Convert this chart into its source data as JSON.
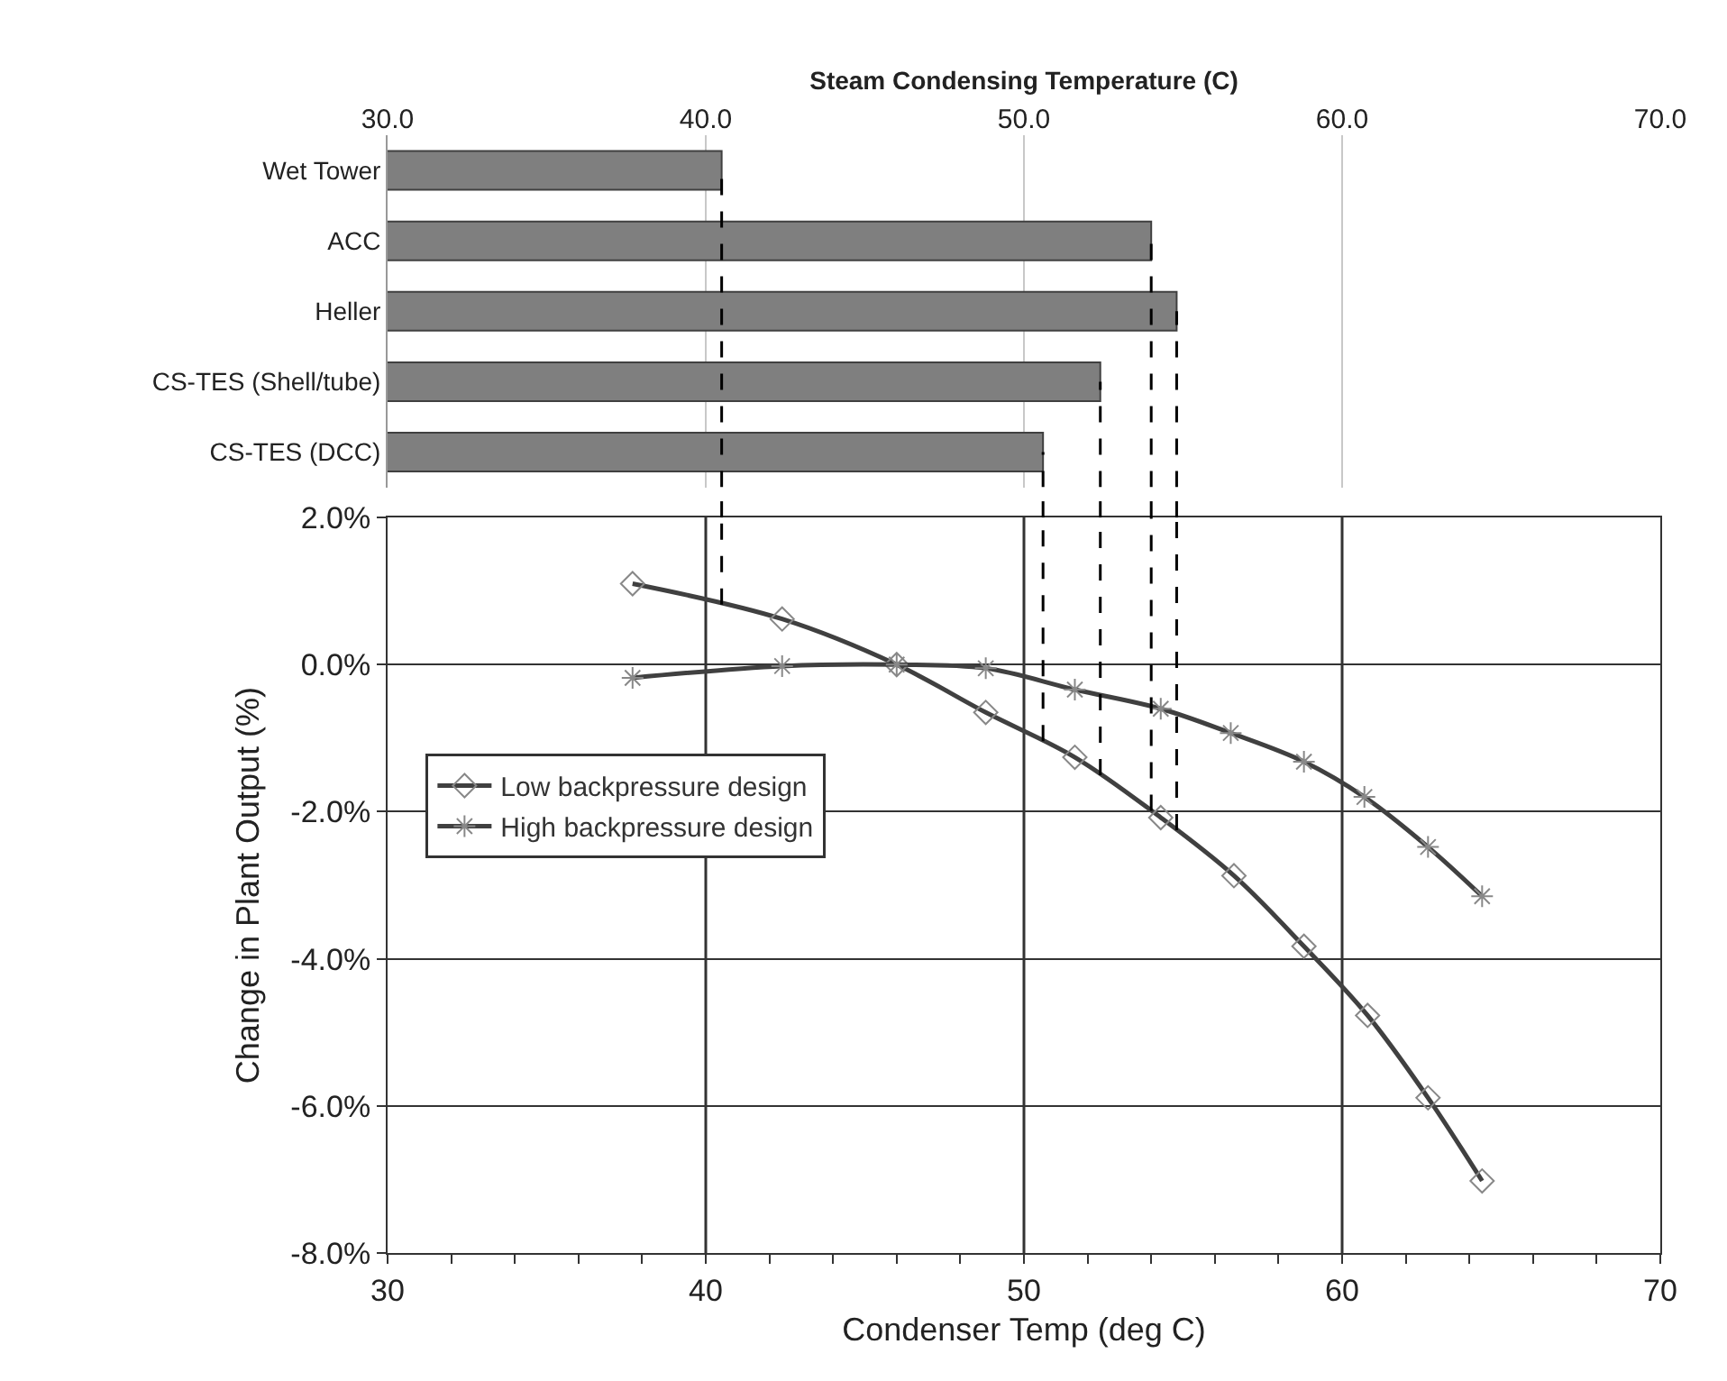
{
  "chart_data": [
    {
      "type": "bar",
      "orientation": "horizontal",
      "xlabel": "Steam Condensing Temperature (C)",
      "categories": [
        "Wet Tower",
        "ACC",
        "Heller",
        "CS-TES (Shell/tube)",
        "CS-TES (DCC)"
      ],
      "values": [
        40.5,
        54.0,
        54.8,
        52.4,
        50.6
      ],
      "color": "#7f7f7f",
      "xlim": [
        30,
        70
      ],
      "xticks": [
        {
          "value": 30,
          "label": "30.0"
        },
        {
          "value": 40,
          "label": "40.0"
        },
        {
          "value": 50,
          "label": "50.0"
        },
        {
          "value": 60,
          "label": "60.0"
        },
        {
          "value": 70,
          "label": "70.0"
        }
      ],
      "grid": "x",
      "legend": false,
      "ref_lines": [
        {
          "axis": "x",
          "value": 40.5,
          "color": "#000000",
          "line_style": "dashed"
        },
        {
          "axis": "x",
          "value": 54.0,
          "color": "#000000",
          "line_style": "dashed"
        },
        {
          "axis": "x",
          "value": 54.8,
          "color": "#000000",
          "line_style": "dashed"
        },
        {
          "axis": "x",
          "value": 52.4,
          "color": "#000000",
          "line_style": "dashed"
        },
        {
          "axis": "x",
          "value": 50.6,
          "color": "#000000",
          "line_style": "dashed"
        }
      ]
    },
    {
      "type": "line",
      "xlabel": "Condenser Temp (deg C)",
      "ylabel": "Change in Plant Output (%)",
      "series": [
        {
          "name": "Low backpressure design",
          "color": "#404040",
          "marker": "diamond",
          "x": [
            37.7,
            42.4,
            46.0,
            48.8,
            51.6,
            54.3,
            56.6,
            58.8,
            60.8,
            62.7,
            64.4
          ],
          "values": [
            1.1,
            0.62,
            0.0,
            -0.65,
            -1.26,
            -2.08,
            -2.87,
            -3.83,
            -4.77,
            -5.89,
            -7.02
          ]
        },
        {
          "name": "High backpressure design",
          "color": "#404040",
          "marker": "cross",
          "x": [
            37.7,
            42.4,
            46.0,
            48.8,
            51.6,
            54.3,
            56.5,
            58.8,
            60.7,
            62.7,
            64.4
          ],
          "values": [
            -0.18,
            -0.02,
            0.0,
            -0.05,
            -0.34,
            -0.6,
            -0.93,
            -1.32,
            -1.8,
            -2.48,
            -3.15
          ]
        }
      ],
      "xlim": [
        30,
        70
      ],
      "xticks": [
        30,
        {
          "value": 32,
          "label": null
        },
        {
          "value": 34,
          "label": null
        },
        {
          "value": 36,
          "label": null
        },
        {
          "value": 38,
          "label": null
        },
        40,
        {
          "value": 42,
          "label": null
        },
        {
          "value": 44,
          "label": null
        },
        {
          "value": 46,
          "label": null
        },
        {
          "value": 48,
          "label": null
        },
        50,
        {
          "value": 52,
          "label": null
        },
        {
          "value": 54,
          "label": null
        },
        {
          "value": 56,
          "label": null
        },
        {
          "value": 58,
          "label": null
        },
        60,
        {
          "value": 62,
          "label": null
        },
        {
          "value": 64,
          "label": null
        },
        {
          "value": 66,
          "label": null
        },
        {
          "value": 68,
          "label": null
        },
        70
      ],
      "ylim": [
        -8,
        2
      ],
      "yticks": [
        {
          "value": 2,
          "label": "2.0%"
        },
        {
          "value": 0,
          "label": "0.0%"
        },
        {
          "value": -2,
          "label": "-2.0%"
        },
        {
          "value": -4,
          "label": "-4.0%"
        },
        {
          "value": -6,
          "label": "-6.0%"
        },
        {
          "value": -8,
          "label": "-8.0%"
        }
      ],
      "grid": true,
      "legend": "left",
      "line_style": "solid",
      "ref_lines": [
        {
          "axis": "x",
          "value": 40.5,
          "color": "#000000",
          "line_style": "dashed"
        },
        {
          "axis": "x",
          "value": 54.0,
          "color": "#000000",
          "line_style": "dashed"
        },
        {
          "axis": "x",
          "value": 54.8,
          "color": "#000000",
          "line_style": "dashed"
        },
        {
          "axis": "x",
          "value": 52.4,
          "color": "#000000",
          "line_style": "dashed"
        },
        {
          "axis": "x",
          "value": 50.6,
          "color": "#000000",
          "line_style": "dashed"
        }
      ]
    }
  ]
}
